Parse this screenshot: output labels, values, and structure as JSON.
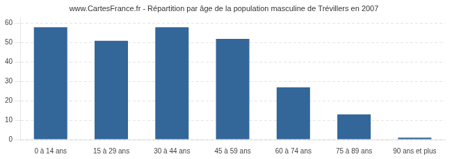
{
  "chart_data": {
    "type": "bar",
    "title": "www.CartesFrance.fr - Répartition par âge de la population masculine de Trévillers en 2007",
    "categories": [
      "0 à 14 ans",
      "15 à 29 ans",
      "30 à 44 ans",
      "45 à 59 ans",
      "60 à 74 ans",
      "75 à 89 ans",
      "90 ans et plus"
    ],
    "values": [
      58,
      51,
      58,
      52,
      27,
      13,
      1
    ],
    "color": "#336699",
    "ylim": [
      0,
      63
    ],
    "yticks": [
      0,
      10,
      20,
      30,
      40,
      50,
      60
    ],
    "grid": true
  }
}
